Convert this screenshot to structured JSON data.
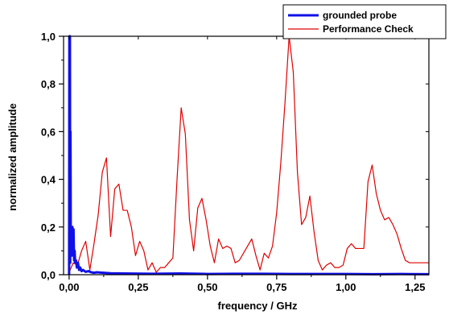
{
  "chart_data": {
    "type": "line",
    "xlabel": "frequency / GHz",
    "ylabel": "normalized amplitude",
    "xlim": [
      -0.02,
      1.3
    ],
    "ylim": [
      0,
      1.0
    ],
    "x_ticks": [
      0,
      0.25,
      0.5,
      0.75,
      1.0,
      1.25
    ],
    "x_tick_labels": [
      "0,00",
      "0,25",
      "0,50",
      "0,75",
      "1,00",
      "1,25"
    ],
    "y_ticks": [
      0,
      0.2,
      0.4,
      0.6,
      0.8,
      1.0
    ],
    "y_tick_labels": [
      "0,0",
      "0,2",
      "0,4",
      "0,6",
      "0,8",
      "1,0"
    ],
    "legend_position": "top-right",
    "series": [
      {
        "name": "grounded probe",
        "color": "#1010e8",
        "x": [
          0.0,
          0.001,
          0.002,
          0.003,
          0.004,
          0.005,
          0.006,
          0.008,
          0.01,
          0.012,
          0.014,
          0.016,
          0.018,
          0.02,
          0.022,
          0.025,
          0.028,
          0.032,
          0.036,
          0.04,
          0.045,
          0.05,
          0.06,
          0.07,
          0.08,
          0.09,
          0.1,
          0.15,
          0.2,
          0.3,
          0.4,
          0.5,
          0.6,
          0.7,
          0.8,
          0.9,
          1.0,
          1.1,
          1.2,
          1.3
        ],
        "values": [
          0.0,
          1.0,
          0.3,
          1.0,
          0.05,
          0.6,
          0.15,
          0.1,
          0.08,
          0.2,
          0.12,
          0.19,
          0.06,
          0.1,
          0.05,
          0.06,
          0.03,
          0.05,
          0.02,
          0.03,
          0.015,
          0.02,
          0.012,
          0.015,
          0.01,
          0.008,
          0.01,
          0.006,
          0.005,
          0.004,
          0.005,
          0.003,
          0.004,
          0.004,
          0.003,
          0.003,
          0.003,
          0.002,
          0.003,
          0.002
        ]
      },
      {
        "name": "Performance Check",
        "color": "#e00000",
        "x": [
          0.0,
          0.015,
          0.03,
          0.045,
          0.06,
          0.075,
          0.09,
          0.105,
          0.12,
          0.135,
          0.15,
          0.165,
          0.18,
          0.195,
          0.21,
          0.225,
          0.24,
          0.255,
          0.27,
          0.285,
          0.3,
          0.315,
          0.33,
          0.345,
          0.36,
          0.375,
          0.39,
          0.405,
          0.42,
          0.435,
          0.45,
          0.465,
          0.48,
          0.495,
          0.51,
          0.525,
          0.54,
          0.555,
          0.57,
          0.585,
          0.6,
          0.615,
          0.63,
          0.645,
          0.66,
          0.675,
          0.69,
          0.705,
          0.72,
          0.735,
          0.75,
          0.765,
          0.78,
          0.795,
          0.81,
          0.825,
          0.84,
          0.855,
          0.87,
          0.885,
          0.9,
          0.915,
          0.93,
          0.945,
          0.96,
          0.975,
          0.99,
          1.005,
          1.02,
          1.035,
          1.05,
          1.065,
          1.08,
          1.095,
          1.11,
          1.125,
          1.14,
          1.155,
          1.17,
          1.185,
          1.2,
          1.215,
          1.23,
          1.245,
          1.26,
          1.275,
          1.29,
          1.3
        ],
        "values": [
          0.01,
          0.05,
          0.04,
          0.1,
          0.14,
          0.02,
          0.13,
          0.25,
          0.43,
          0.49,
          0.16,
          0.36,
          0.38,
          0.27,
          0.27,
          0.2,
          0.08,
          0.14,
          0.1,
          0.02,
          0.05,
          0.01,
          0.03,
          0.03,
          0.05,
          0.07,
          0.4,
          0.7,
          0.59,
          0.23,
          0.1,
          0.28,
          0.32,
          0.23,
          0.12,
          0.05,
          0.15,
          0.11,
          0.12,
          0.11,
          0.05,
          0.06,
          0.09,
          0.12,
          0.15,
          0.08,
          0.02,
          0.09,
          0.07,
          0.12,
          0.26,
          0.47,
          0.72,
          1.0,
          0.85,
          0.43,
          0.21,
          0.24,
          0.33,
          0.18,
          0.06,
          0.02,
          0.04,
          0.05,
          0.03,
          0.03,
          0.04,
          0.11,
          0.13,
          0.11,
          0.11,
          0.11,
          0.39,
          0.46,
          0.34,
          0.27,
          0.23,
          0.24,
          0.21,
          0.17,
          0.11,
          0.06,
          0.05,
          0.05,
          0.05,
          0.05,
          0.05,
          0.05
        ]
      }
    ]
  }
}
